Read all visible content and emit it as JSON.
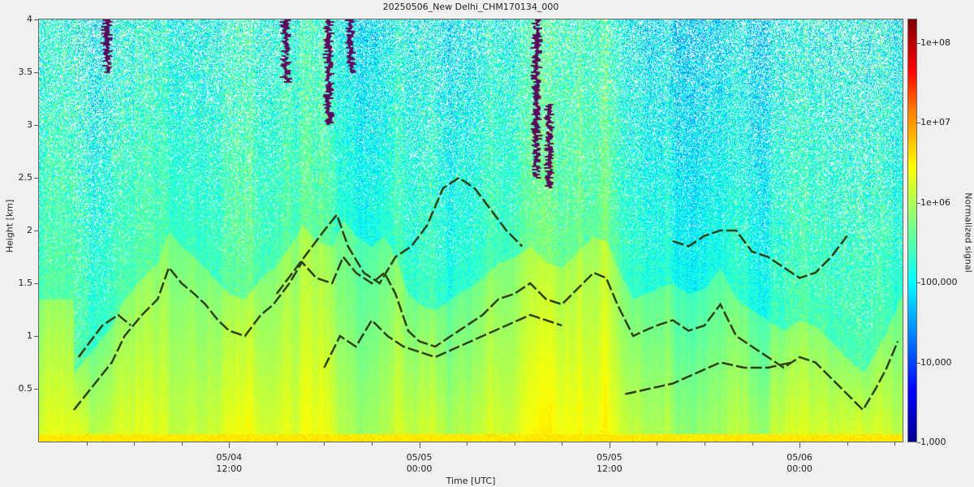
{
  "chart_data": {
    "type": "heatmap",
    "title": "20250506_New Delhi_CHM170134_000",
    "xlabel": "Time [UTC]",
    "ylabel": "Height [km]",
    "colorbar_label": "Normalized signal",
    "ylim": [
      0,
      4
    ],
    "y_ticks": [
      "0.5",
      "1",
      "1.5",
      "2",
      "2.5",
      "3",
      "3.5",
      "4"
    ],
    "y_tick_values": [
      0.5,
      1,
      1.5,
      2,
      2.5,
      3,
      3.5,
      4
    ],
    "x_ticks": [
      {
        "date": "05/04",
        "time": "12:00",
        "hour": 12
      },
      {
        "date": "05/05",
        "time": "00:00",
        "hour": 24
      },
      {
        "date": "05/05",
        "time": "12:00",
        "hour": 36
      },
      {
        "date": "05/06",
        "time": "00:00",
        "hour": 48
      }
    ],
    "xlim_hours": [
      0,
      54.5
    ],
    "colorbar_ticks": [
      "1,000",
      "10,000",
      "100,000",
      "1e+06",
      "1e+07",
      "1e+08"
    ],
    "colorbar_exponents": [
      3,
      4,
      5,
      6,
      7,
      8
    ],
    "colorbar_range_exponents": [
      3,
      8.3
    ],
    "colorbar_scale": "log",
    "colormap": "jet",
    "boundary_layer_lines": [
      {
        "name": "",
        "points": [
          [
            2.2,
            0.3
          ],
          [
            3,
            0.45
          ],
          [
            3.8,
            0.6
          ],
          [
            4.6,
            0.75
          ],
          [
            5.4,
            1.0
          ],
          [
            6.5,
            1.2
          ],
          [
            7.5,
            1.35
          ],
          [
            8.2,
            1.65
          ],
          [
            9,
            1.5
          ],
          [
            9.8,
            1.4
          ],
          [
            10.5,
            1.3
          ],
          [
            11.3,
            1.15
          ],
          [
            12,
            1.05
          ],
          [
            13,
            1.0
          ],
          [
            14,
            1.2
          ],
          [
            14.8,
            1.3
          ],
          [
            15.8,
            1.5
          ],
          [
            16.6,
            1.7
          ],
          [
            17.5,
            1.55
          ],
          [
            18.5,
            1.5
          ],
          [
            19.2,
            1.75
          ],
          [
            20,
            1.6
          ],
          [
            21,
            1.5
          ],
          [
            21.8,
            1.6
          ],
          [
            22.5,
            1.4
          ],
          [
            23.3,
            1.05
          ],
          [
            24,
            0.95
          ],
          [
            25,
            0.9
          ],
          [
            26,
            1.0
          ],
          [
            27,
            1.1
          ],
          [
            28,
            1.2
          ],
          [
            29,
            1.35
          ],
          [
            30,
            1.4
          ],
          [
            31,
            1.5
          ],
          [
            32,
            1.35
          ],
          [
            33,
            1.3
          ],
          [
            34,
            1.45
          ],
          [
            35,
            1.6
          ],
          [
            35.8,
            1.55
          ],
          [
            36.5,
            1.3
          ],
          [
            37.5,
            1.0
          ],
          [
            38.2,
            1.05
          ],
          [
            39,
            1.1
          ],
          [
            40,
            1.15
          ],
          [
            41,
            1.05
          ],
          [
            42,
            1.1
          ],
          [
            43,
            1.3
          ],
          [
            44,
            1.0
          ],
          [
            45,
            0.9
          ],
          [
            46,
            0.8
          ],
          [
            47,
            0.7
          ],
          [
            48,
            0.8
          ],
          [
            49,
            0.75
          ],
          [
            50,
            0.6
          ],
          [
            51,
            0.45
          ],
          [
            52,
            0.3
          ],
          [
            52.8,
            0.5
          ],
          [
            53.5,
            0.7
          ],
          [
            54.2,
            0.95
          ]
        ]
      },
      {
        "name": "",
        "points": [
          [
            18,
            0.7
          ],
          [
            19,
            1.0
          ],
          [
            20,
            0.9
          ],
          [
            21,
            1.15
          ],
          [
            22,
            1.0
          ],
          [
            23,
            0.9
          ],
          [
            25,
            0.8
          ],
          [
            26.5,
            0.9
          ],
          [
            28,
            1.0
          ],
          [
            29.5,
            1.1
          ],
          [
            31,
            1.2
          ],
          [
            33,
            1.1
          ]
        ]
      },
      {
        "name": "",
        "points": [
          [
            15,
            1.4
          ],
          [
            16,
            1.6
          ],
          [
            17,
            1.8
          ],
          [
            18,
            2.0
          ],
          [
            18.8,
            2.15
          ],
          [
            19.5,
            1.85
          ],
          [
            20.5,
            1.6
          ],
          [
            21.5,
            1.5
          ],
          [
            22.5,
            1.75
          ],
          [
            23.5,
            1.85
          ],
          [
            24.5,
            2.05
          ],
          [
            25.5,
            2.4
          ],
          [
            26.5,
            2.5
          ],
          [
            27.5,
            2.4
          ],
          [
            28.5,
            2.2
          ],
          [
            29.5,
            2.0
          ],
          [
            30.5,
            1.85
          ]
        ]
      },
      {
        "name": "",
        "points": [
          [
            40,
            1.9
          ],
          [
            41,
            1.85
          ],
          [
            42,
            1.95
          ],
          [
            43,
            2.0
          ],
          [
            44,
            2.0
          ],
          [
            45,
            1.8
          ],
          [
            46,
            1.75
          ],
          [
            47,
            1.65
          ],
          [
            48,
            1.55
          ],
          [
            49,
            1.6
          ],
          [
            50,
            1.75
          ],
          [
            51,
            1.95
          ]
        ]
      },
      {
        "name": "",
        "points": [
          [
            37,
            0.45
          ],
          [
            38.5,
            0.5
          ],
          [
            40,
            0.55
          ],
          [
            41.5,
            0.65
          ],
          [
            43,
            0.75
          ],
          [
            44.5,
            0.7
          ],
          [
            46,
            0.7
          ],
          [
            47.5,
            0.75
          ]
        ]
      },
      {
        "name": "",
        "points": [
          [
            2.5,
            0.8
          ],
          [
            3.5,
            1.0
          ],
          [
            4,
            1.1
          ],
          [
            5,
            1.2
          ],
          [
            5.8,
            1.1
          ]
        ]
      }
    ],
    "aerosol_top_columns": [
      {
        "hour": 4.3,
        "bottom": 3.5,
        "top": 4.0
      },
      {
        "hour": 15.6,
        "bottom": 3.4,
        "top": 4.0
      },
      {
        "hour": 18.3,
        "bottom": 3.0,
        "top": 4.0
      },
      {
        "hour": 19.7,
        "bottom": 3.5,
        "top": 4.0
      },
      {
        "hour": 31.4,
        "bottom": 2.5,
        "top": 4.0
      },
      {
        "hour": 32.2,
        "bottom": 2.4,
        "top": 3.2
      }
    ]
  }
}
